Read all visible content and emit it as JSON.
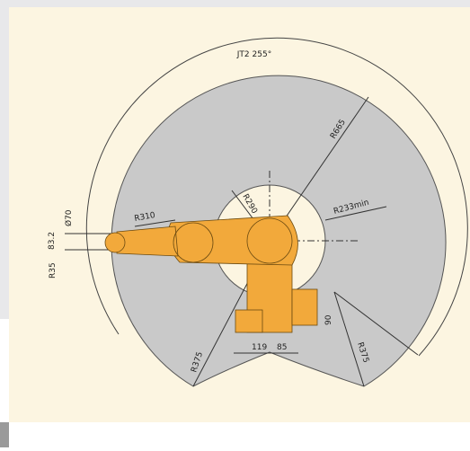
{
  "diagram": {
    "title": "JT2 255°",
    "dimensions": [
      "R665",
      "R290",
      "R233min",
      "R310",
      "Ø70",
      "83.2",
      "R35",
      "R375",
      "R375",
      "119",
      "85",
      "90"
    ]
  }
}
